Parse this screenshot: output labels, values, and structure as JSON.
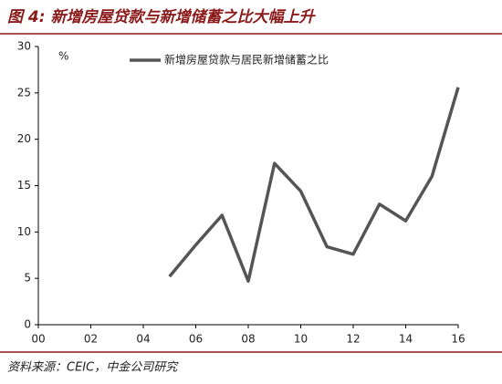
{
  "chart_data": {
    "type": "line",
    "title": "图 4: 新增房屋贷款与新增储蓄之比大幅上升",
    "y_label": "%",
    "source": "资料来源：CEIC，中金公司研究",
    "x": [
      5,
      6,
      7,
      8,
      9,
      10,
      11,
      12,
      13,
      14,
      15,
      16
    ],
    "series": [
      {
        "name": "新增房屋贷款与居民新增储蓄之比",
        "color": "#555555",
        "values": [
          5.2,
          8.6,
          11.8,
          4.7,
          17.4,
          14.4,
          8.4,
          7.6,
          13.0,
          11.2,
          16.0,
          25.6
        ]
      }
    ],
    "xlim": [
      0,
      16
    ],
    "xticks": [
      {
        "value": 0,
        "label": "00"
      },
      {
        "value": 2,
        "label": "02"
      },
      {
        "value": 4,
        "label": "04"
      },
      {
        "value": 6,
        "label": "06"
      },
      {
        "value": 8,
        "label": "08"
      },
      10,
      12,
      14,
      16
    ],
    "ylim": [
      0,
      30
    ],
    "yticks": [
      0,
      5,
      10,
      15,
      20,
      25,
      30
    ],
    "grid": false
  }
}
